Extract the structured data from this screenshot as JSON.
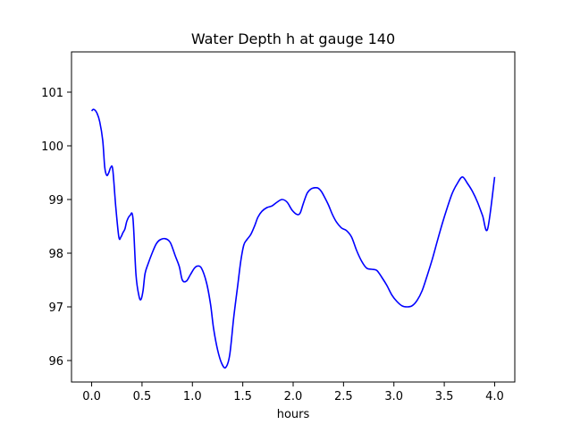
{
  "chart_data": {
    "type": "line",
    "title": "Water Depth h at gauge 140",
    "xlabel": "hours",
    "ylabel": "",
    "xlim": [
      -0.2,
      4.2
    ],
    "ylim": [
      95.6,
      101.75
    ],
    "xticks": [
      0.0,
      0.5,
      1.0,
      1.5,
      2.0,
      2.5,
      3.0,
      3.5,
      4.0
    ],
    "xtick_labels": [
      "0.0",
      "0.5",
      "1.0",
      "1.5",
      "2.0",
      "2.5",
      "3.0",
      "3.5",
      "4.0"
    ],
    "yticks": [
      96,
      97,
      98,
      99,
      100,
      101
    ],
    "ytick_labels": [
      "96",
      "97",
      "98",
      "99",
      "100",
      "101"
    ],
    "grid": false,
    "series": [
      {
        "color": "#0000ff",
        "x": [
          0.0,
          0.02,
          0.05,
          0.08,
          0.11,
          0.13,
          0.15,
          0.17,
          0.19,
          0.21,
          0.24,
          0.27,
          0.29,
          0.31,
          0.33,
          0.35,
          0.38,
          0.41,
          0.44,
          0.47,
          0.49,
          0.51,
          0.53,
          0.56,
          0.6,
          0.64,
          0.68,
          0.73,
          0.78,
          0.83,
          0.87,
          0.9,
          0.94,
          0.98,
          1.02,
          1.05,
          1.09,
          1.14,
          1.18,
          1.21,
          1.25,
          1.29,
          1.33,
          1.37,
          1.41,
          1.45,
          1.48,
          1.51,
          1.54,
          1.58,
          1.62,
          1.65,
          1.69,
          1.74,
          1.79,
          1.84,
          1.89,
          1.94,
          1.99,
          2.04,
          2.07,
          2.1,
          2.14,
          2.18,
          2.22,
          2.25,
          2.28,
          2.31,
          2.35,
          2.39,
          2.43,
          2.48,
          2.53,
          2.58,
          2.63,
          2.68,
          2.73,
          2.78,
          2.83,
          2.88,
          2.93,
          2.98,
          3.03,
          3.08,
          3.13,
          3.18,
          3.23,
          3.28,
          3.33,
          3.38,
          3.43,
          3.48,
          3.53,
          3.58,
          3.63,
          3.68,
          3.73,
          3.78,
          3.83,
          3.88,
          3.93,
          4.0
        ],
        "y": [
          100.65,
          100.68,
          100.62,
          100.45,
          100.1,
          99.6,
          99.45,
          99.5,
          99.6,
          99.55,
          98.85,
          98.3,
          98.3,
          98.38,
          98.45,
          98.6,
          98.7,
          98.65,
          97.6,
          97.2,
          97.14,
          97.3,
          97.62,
          97.8,
          98.0,
          98.17,
          98.25,
          98.27,
          98.2,
          97.95,
          97.75,
          97.5,
          97.48,
          97.6,
          97.72,
          97.76,
          97.72,
          97.45,
          97.05,
          96.6,
          96.2,
          95.95,
          95.87,
          96.1,
          96.8,
          97.4,
          97.85,
          98.15,
          98.25,
          98.35,
          98.52,
          98.67,
          98.78,
          98.85,
          98.88,
          98.95,
          99.0,
          98.95,
          98.8,
          98.72,
          98.75,
          98.92,
          99.12,
          99.2,
          99.22,
          99.21,
          99.15,
          99.05,
          98.9,
          98.72,
          98.58,
          98.47,
          98.42,
          98.3,
          98.05,
          97.85,
          97.72,
          97.7,
          97.68,
          97.55,
          97.4,
          97.22,
          97.1,
          97.02,
          97.0,
          97.02,
          97.12,
          97.3,
          97.58,
          97.88,
          98.22,
          98.55,
          98.85,
          99.12,
          99.3,
          99.42,
          99.3,
          99.15,
          98.95,
          98.7,
          98.45,
          99.42
        ]
      }
    ]
  }
}
